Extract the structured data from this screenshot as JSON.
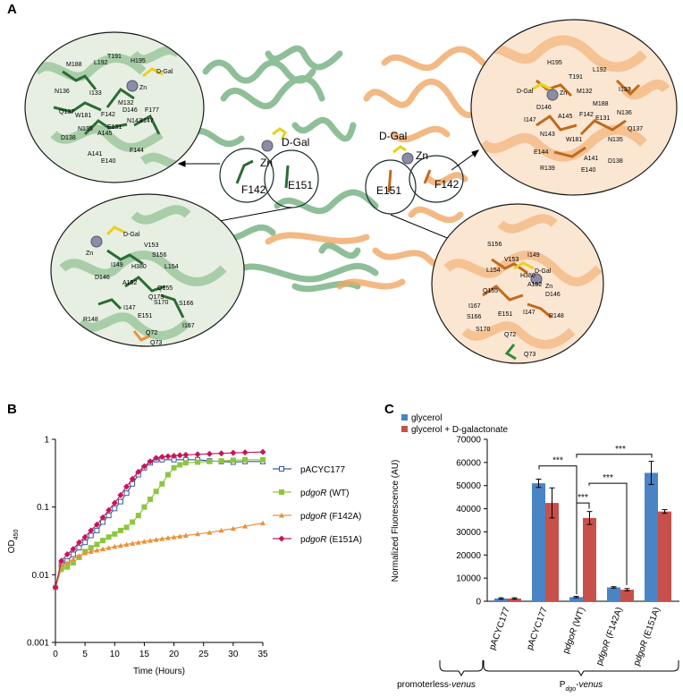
{
  "panels": {
    "a": "A",
    "b": "B",
    "c": "C"
  },
  "structure": {
    "center_labels": [
      "D-Gal",
      "Zn",
      "F142",
      "E151",
      "D-Gal",
      "Zn",
      "E151",
      "F142"
    ],
    "inset_top_left": [
      "T191",
      "H195",
      "M188",
      "L192",
      "D-Gal",
      "Zn",
      "N136",
      "I133",
      "M132",
      "Q137",
      "D146",
      "F177",
      "W181",
      "F142",
      "N143",
      "I147",
      "E131",
      "N135",
      "A145",
      "D138",
      "F144",
      "A141",
      "E140"
    ],
    "inset_top_right": [
      "H195",
      "T191",
      "L192",
      "D-Gal",
      "Zn",
      "M132",
      "I133",
      "M188",
      "A145",
      "F142",
      "E131",
      "N136",
      "I147",
      "D146",
      "Q137",
      "N143",
      "W181",
      "N135",
      "E144",
      "A141",
      "R139",
      "E140",
      "D138"
    ],
    "inset_bottom_left": [
      "D-Gal",
      "V153",
      "Zn",
      "S156",
      "I149",
      "H380",
      "L154",
      "D146",
      "A152",
      "Q155",
      "Q173",
      "E151",
      "I147",
      "S170",
      "S166",
      "R148",
      "I167",
      "Q72",
      "Q73"
    ],
    "inset_bottom_right": [
      "S156",
      "I149",
      "V153",
      "D-Gal",
      "L154",
      "H380",
      "Zn",
      "Q155",
      "A152",
      "D146",
      "I167",
      "E151",
      "S166",
      "I147",
      "R148",
      "S170",
      "Q72",
      "Q73"
    ],
    "colors": {
      "green": "#3f8a4c",
      "orange": "#e8923a",
      "yellow": "#e8d020",
      "zinc": "#8c8ca6"
    }
  },
  "chart_data": [
    {
      "type": "line",
      "panel": "B",
      "xlabel": "Time (Hours)",
      "ylabel": "OD",
      "ylabel_sub": "450",
      "yscale": "log",
      "xlim": [
        0,
        35
      ],
      "ylim": [
        0.001,
        1
      ],
      "x_ticks": [
        "0",
        "5",
        "10",
        "15",
        "20",
        "25",
        "30",
        "35"
      ],
      "y_ticks": [
        "0.001",
        "0.01",
        "0.1",
        "1"
      ],
      "legend_position": "right",
      "series": [
        {
          "name": "pACYC177",
          "color": "#3a5a9c",
          "marker": "square",
          "x": [
            0,
            1,
            2,
            3,
            4,
            5,
            6,
            7,
            8,
            9,
            10,
            11,
            12,
            13,
            14,
            15,
            16,
            17,
            18,
            20,
            22,
            24,
            26,
            28,
            30,
            32,
            35
          ],
          "y": [
            0.0065,
            0.014,
            0.016,
            0.02,
            0.025,
            0.03,
            0.038,
            0.045,
            0.06,
            0.075,
            0.095,
            0.12,
            0.16,
            0.22,
            0.3,
            0.38,
            0.45,
            0.5,
            0.5,
            0.5,
            0.5,
            0.5,
            0.48,
            0.47,
            0.46,
            0.47,
            0.47
          ]
        },
        {
          "name": "pdgoR (WT)",
          "name_parts": [
            "p",
            "dgoR",
            " (WT)"
          ],
          "color": "#8cc63f",
          "marker": "square",
          "x": [
            0,
            1,
            2,
            3,
            4,
            5,
            6,
            7,
            8,
            9,
            10,
            11,
            12,
            13,
            14,
            15,
            16,
            17,
            18,
            19,
            20,
            21,
            22,
            24,
            26,
            28,
            30,
            32,
            35
          ],
          "y": [
            0.0065,
            0.012,
            0.013,
            0.015,
            0.018,
            0.022,
            0.025,
            0.028,
            0.032,
            0.036,
            0.04,
            0.045,
            0.05,
            0.06,
            0.075,
            0.1,
            0.13,
            0.17,
            0.22,
            0.3,
            0.38,
            0.42,
            0.45,
            0.46,
            0.47,
            0.48,
            0.49,
            0.5,
            0.5
          ]
        },
        {
          "name": "pdgoR (F142A)",
          "name_parts": [
            "p",
            "dgoR",
            " (F142A)"
          ],
          "color": "#e8923a",
          "marker": "triangle",
          "x": [
            0,
            1,
            2,
            3,
            4,
            5,
            6,
            7,
            8,
            9,
            10,
            11,
            12,
            13,
            14,
            15,
            16,
            17,
            18,
            19,
            20,
            21,
            22,
            24,
            26,
            28,
            30,
            32,
            35
          ],
          "y": [
            0.0065,
            0.014,
            0.015,
            0.017,
            0.019,
            0.021,
            0.022,
            0.023,
            0.024,
            0.025,
            0.026,
            0.027,
            0.028,
            0.029,
            0.03,
            0.031,
            0.032,
            0.033,
            0.034,
            0.035,
            0.036,
            0.037,
            0.038,
            0.04,
            0.042,
            0.045,
            0.048,
            0.052,
            0.058
          ]
        },
        {
          "name": "pdgoR (E151A)",
          "name_parts": [
            "p",
            "dgoR",
            " (E151A)"
          ],
          "color": "#c8155a",
          "marker": "diamond",
          "x": [
            0,
            1,
            2,
            3,
            4,
            5,
            6,
            7,
            8,
            9,
            10,
            11,
            12,
            13,
            14,
            15,
            16,
            17,
            18,
            19,
            20,
            21,
            22,
            24,
            26,
            28,
            30,
            32,
            35
          ],
          "y": [
            0.0065,
            0.016,
            0.02,
            0.024,
            0.03,
            0.036,
            0.045,
            0.055,
            0.07,
            0.09,
            0.115,
            0.15,
            0.2,
            0.26,
            0.33,
            0.4,
            0.47,
            0.53,
            0.55,
            0.56,
            0.57,
            0.58,
            0.59,
            0.6,
            0.61,
            0.62,
            0.63,
            0.64,
            0.65
          ]
        }
      ]
    },
    {
      "type": "bar",
      "panel": "C",
      "ylabel": "Normalized Fluorescence (AU)",
      "ylim": [
        0,
        70000
      ],
      "y_ticks": [
        "0",
        "10000",
        "20000",
        "30000",
        "40000",
        "50000",
        "60000",
        "70000"
      ],
      "categories": [
        "pACYC177",
        "pACYC177",
        "pdgoR (WT)",
        "pdgoR (F142A)",
        "pdgoR (E151A)"
      ],
      "category_parts": [
        [
          "pACYC177"
        ],
        [
          "pACYC177"
        ],
        [
          "p",
          "dgoR",
          " (WT)"
        ],
        [
          "p",
          "dgoR",
          " (F142A)"
        ],
        [
          "p",
          "dgoR",
          " (E151A)"
        ]
      ],
      "legend_position": "top-left",
      "series": [
        {
          "name": "glycerol",
          "color": "#4a84c4",
          "values": [
            1200,
            51000,
            1800,
            6000,
            55500
          ],
          "errors": [
            300,
            1800,
            300,
            300,
            5000
          ]
        },
        {
          "name": "glycerol + D-galactonate",
          "color": "#c8504a",
          "values": [
            1200,
            42500,
            36000,
            5000,
            38800
          ],
          "errors": [
            300,
            6500,
            2800,
            500,
            800
          ]
        }
      ],
      "significance": [
        "***",
        "***",
        "***",
        "***"
      ],
      "groups": [
        {
          "label_parts": [
            "promoterless-",
            "venus"
          ]
        },
        {
          "label_parts": [
            "P",
            "dgo",
            "-",
            "venus"
          ]
        }
      ]
    }
  ]
}
